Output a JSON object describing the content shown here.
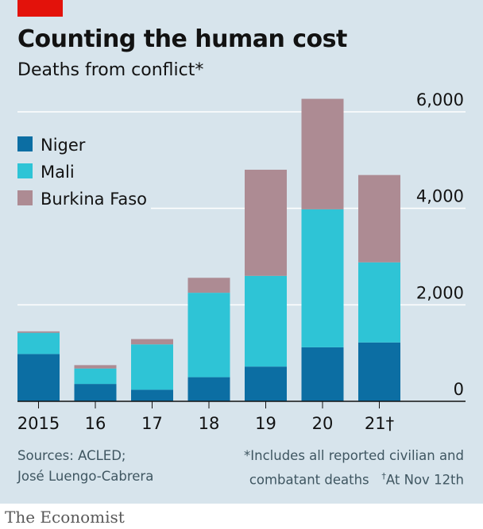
{
  "header": {
    "title": "Counting the human cost",
    "subtitle": "Deaths from conflict*"
  },
  "footer": {
    "sources_line1": "Sources: ACLED;",
    "sources_line2": "José Luengo-Cabrera",
    "note_line1": "*Includes all reported civilian and",
    "note_line2a": "combatant deaths",
    "note_dagger": "†",
    "note_line2b": "At Nov 12th"
  },
  "brand": "The Economist",
  "colors": {
    "background": "#d7e4ec",
    "accent": "#e3120b",
    "niger": "#0c6ea3",
    "mali": "#2ec4d6",
    "burkina_faso": "#ad8b93",
    "gridline": "#ffffff",
    "text": "#121212"
  },
  "chart_data": {
    "type": "bar",
    "stacked": true,
    "title": "Counting the human cost",
    "subtitle": "Deaths from conflict*",
    "categories": [
      "2015",
      "16",
      "17",
      "18",
      "19",
      "20",
      "21†"
    ],
    "series": [
      {
        "name": "Niger",
        "color": "#0c6ea3",
        "values": [
          980,
          360,
          240,
          500,
          720,
          1120,
          1220
        ]
      },
      {
        "name": "Mali",
        "color": "#2ec4d6",
        "values": [
          440,
          320,
          940,
          1750,
          1880,
          2860,
          1660
        ]
      },
      {
        "name": "Burkina Faso",
        "color": "#ad8b93",
        "values": [
          30,
          70,
          110,
          310,
          2200,
          2290,
          1810
        ]
      }
    ],
    "ylim": [
      0,
      6000
    ],
    "yticks": [
      0,
      2000,
      4000,
      6000
    ],
    "ytick_labels": [
      "0",
      "2,000",
      "4,000",
      "6,000"
    ],
    "legend_position": "top-left",
    "grid": true
  }
}
